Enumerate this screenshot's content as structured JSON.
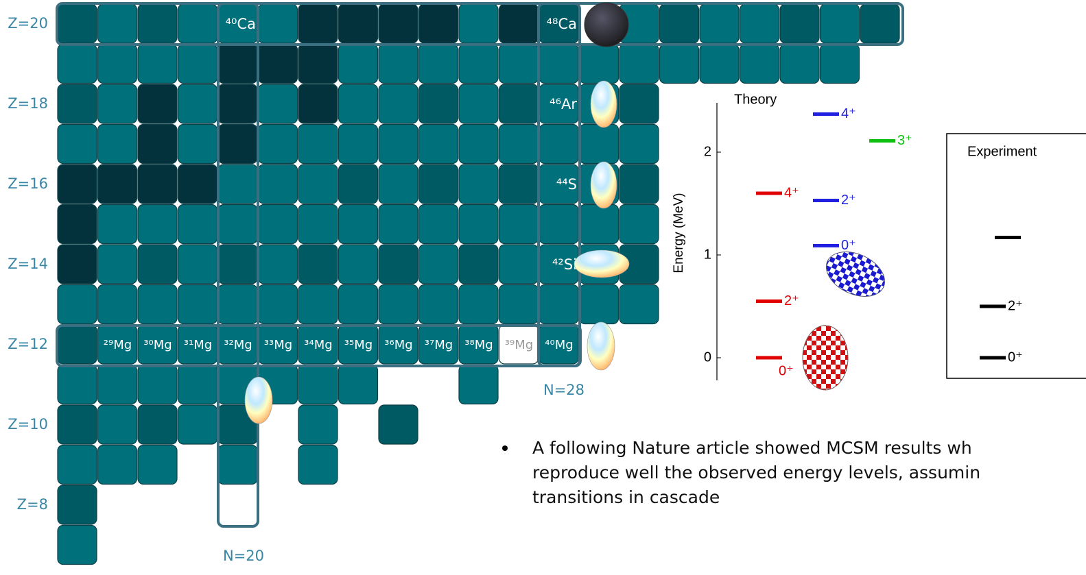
{
  "chart": {
    "z_labels": [
      "Z=20",
      "Z=18",
      "Z=16",
      "Z=14",
      "Z=12",
      "Z=10",
      "Z=8"
    ],
    "n_labels": [
      "N=20",
      "N=28"
    ],
    "isotopes": [
      "⁴⁰Ca",
      "⁴⁸Ca",
      "⁴⁶Ar",
      "⁴⁴S",
      "⁴²Si",
      "²⁹Mg",
      "³⁰Mg",
      "³¹Mg",
      "³²Mg",
      "³³Mg",
      "³⁴Mg",
      "³⁵Mg",
      "³⁶Mg",
      "³⁷Mg",
      "³⁸Mg",
      "³⁹Mg",
      "⁴⁰Mg"
    ]
  },
  "chart_data": {
    "type": "levels",
    "y_label": "Energy (MeV)",
    "ylim": [
      -0.22,
      2.48
    ],
    "yticks": [
      0,
      1,
      2
    ],
    "panels": [
      {
        "title": "Theory",
        "levels": [
          {
            "energy": 0,
            "label": "0⁺",
            "color": "#e00000"
          },
          {
            "energy": 0.55,
            "label": "2⁺",
            "color": "#e00000"
          },
          {
            "energy": 1.6,
            "label": "4⁺",
            "color": "#e00000"
          },
          {
            "energy": 1.09,
            "label": "0⁺",
            "color": "#2020e0"
          },
          {
            "energy": 1.53,
            "label": "2⁺",
            "color": "#2020e0"
          },
          {
            "energy": 2.37,
            "label": "4⁺",
            "color": "#2020e0"
          },
          {
            "energy": 2.11,
            "label": "3⁺",
            "color": "#10c010"
          }
        ]
      },
      {
        "title": "Experiment",
        "levels": [
          {
            "energy": 0,
            "label": "0⁺",
            "color": "#000000"
          },
          {
            "energy": 0.5,
            "label": "2⁺",
            "color": "#000000"
          },
          {
            "energy": 1.17,
            "color": "#000000"
          }
        ]
      }
    ]
  },
  "bullet": {
    "lines": [
      "A following Nature article showed MCSM results wh",
      "reproduce well the observed energy levels, assumin",
      "transitions in cascade"
    ]
  }
}
